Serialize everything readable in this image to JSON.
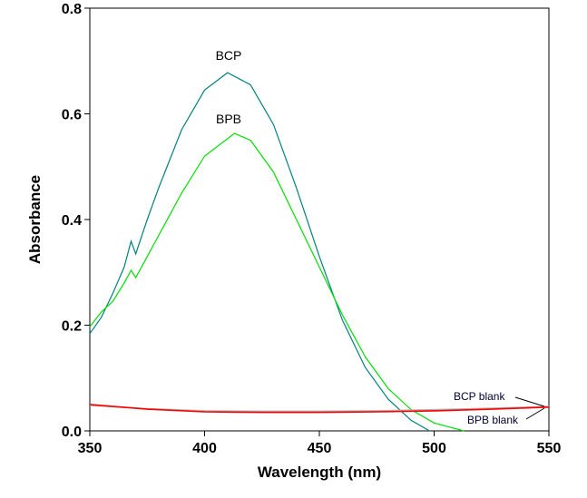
{
  "chart_data": {
    "type": "line",
    "title": "",
    "xlabel": "Wavelength (nm)",
    "ylabel": "Absorbance",
    "xlim": [
      350,
      550
    ],
    "ylim": [
      0,
      0.8
    ],
    "xticks": [
      350,
      400,
      450,
      500,
      550
    ],
    "yticks": [
      "0.0",
      "0.2",
      "0.4",
      "0.6",
      "0.8"
    ],
    "grid": false,
    "series": [
      {
        "name": "BCP",
        "color": "#008080",
        "x": [
          350,
          355,
          360,
          365,
          368,
          370,
          375,
          380,
          390,
          400,
          410,
          420,
          430,
          440,
          450,
          460,
          470,
          480,
          490,
          498
        ],
        "y": [
          0.184,
          0.215,
          0.26,
          0.31,
          0.359,
          0.335,
          0.4,
          0.46,
          0.57,
          0.645,
          0.678,
          0.655,
          0.58,
          0.46,
          0.33,
          0.21,
          0.12,
          0.06,
          0.02,
          0.0
        ]
      },
      {
        "name": "BPB",
        "color": "#00e000",
        "x": [
          350,
          355,
          360,
          365,
          368,
          370,
          375,
          380,
          390,
          400,
          413,
          420,
          430,
          440,
          450,
          460,
          470,
          480,
          490,
          500,
          513
        ],
        "y": [
          0.197,
          0.225,
          0.245,
          0.28,
          0.304,
          0.29,
          0.33,
          0.37,
          0.45,
          0.52,
          0.563,
          0.55,
          0.49,
          0.4,
          0.31,
          0.22,
          0.14,
          0.08,
          0.04,
          0.015,
          0.0
        ]
      },
      {
        "name": "BCP blank",
        "color": "#b0b0b0",
        "x": [
          350,
          375,
          400,
          425,
          450,
          475,
          500,
          525,
          550
        ],
        "y": [
          0.048,
          0.042,
          0.038,
          0.037,
          0.037,
          0.038,
          0.04,
          0.043,
          0.046
        ]
      },
      {
        "name": "BPB blank",
        "color": "#ff0000",
        "x": [
          350,
          375,
          400,
          425,
          450,
          475,
          500,
          525,
          550
        ],
        "y": [
          0.05,
          0.041,
          0.036,
          0.035,
          0.035,
          0.036,
          0.038,
          0.041,
          0.045
        ]
      }
    ],
    "annotations": [
      {
        "text": "BCP",
        "x": 410,
        "y": 0.71
      },
      {
        "text": "BPB",
        "x": 410,
        "y": 0.59
      },
      {
        "text": "BCP blank",
        "x": 513,
        "y": 0.065
      },
      {
        "text": "BPB blank",
        "x": 515,
        "y": 0.018
      }
    ]
  }
}
